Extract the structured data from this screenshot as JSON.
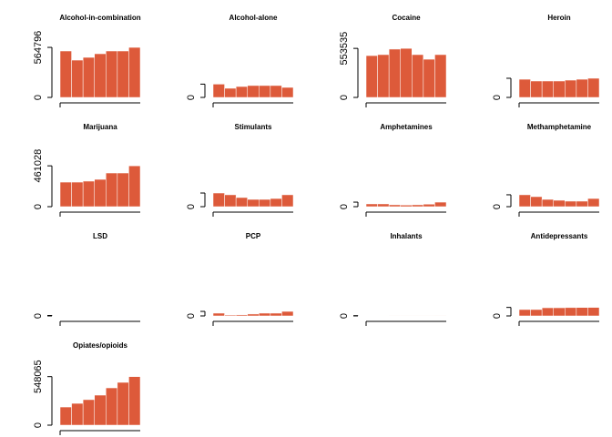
{
  "chart_data": [
    {
      "type": "bar",
      "title": "Alcohol-in-combination",
      "values": [
        524000,
        421000,
        452000,
        493000,
        524000,
        524000,
        564796
      ],
      "color": "#dd5a3a",
      "ylim": [
        0,
        740000
      ],
      "yticks": [
        0,
        564796
      ]
    },
    {
      "type": "bar",
      "title": "Alcohol-alone",
      "values": [
        150000,
        103000,
        123000,
        134000,
        134000,
        134000,
        113000
      ],
      "color": "#dd5a3a",
      "ylim": [
        0,
        740000
      ],
      "yticks": [
        0,
        {
          "value": 150000,
          "label": null
        }
      ]
    },
    {
      "type": "bar",
      "title": "Cocaine",
      "values": [
        472000,
        483000,
        545000,
        553535,
        483000,
        431000,
        483000
      ],
      "color": "#dd5a3a",
      "ylim": [
        0,
        740000
      ],
      "yticks": [
        0,
        553535
      ]
    },
    {
      "type": "bar",
      "title": "Heroin",
      "values": [
        205000,
        185000,
        185000,
        185000,
        195000,
        205000,
        216000
      ],
      "color": "#dd5a3a",
      "ylim": [
        0,
        740000
      ],
      "yticks": [
        0,
        {
          "value": 216000,
          "label": null
        }
      ]
    },
    {
      "type": "bar",
      "title": "Marijuana",
      "values": [
        277000,
        277000,
        288000,
        308000,
        380000,
        380000,
        461028
      ],
      "color": "#dd5a3a",
      "ylim": [
        0,
        740000
      ],
      "yticks": [
        0,
        461028
      ]
    },
    {
      "type": "bar",
      "title": "Stimulants",
      "values": [
        154000,
        134000,
        103000,
        82000,
        82000,
        92000,
        134000
      ],
      "color": "#dd5a3a",
      "ylim": [
        0,
        740000
      ],
      "yticks": [
        0,
        {
          "value": 154000,
          "label": null
        }
      ]
    },
    {
      "type": "bar",
      "title": "Amphetamines",
      "values": [
        31000,
        31000,
        21000,
        18000,
        21000,
        28000,
        51000
      ],
      "color": "#dd5a3a",
      "ylim": [
        0,
        740000
      ],
      "yticks": [
        0,
        {
          "value": 51000,
          "label": null
        }
      ]
    },
    {
      "type": "bar",
      "title": "Methamphetamine",
      "values": [
        134000,
        113000,
        82000,
        72000,
        62000,
        62000,
        92000
      ],
      "color": "#dd5a3a",
      "ylim": [
        0,
        740000
      ],
      "yticks": [
        0,
        {
          "value": 134000,
          "label": null
        }
      ]
    },
    {
      "type": "bar",
      "title": "LSD",
      "values": [
        5000,
        5000,
        4000,
        4000,
        4000,
        4000,
        4000
      ],
      "color": "#dd5a3a",
      "ylim": [
        0,
        740000
      ],
      "yticks": [
        0,
        {
          "value": 5000,
          "label": null
        }
      ]
    },
    {
      "type": "bar",
      "title": "PCP",
      "values": [
        31000,
        10000,
        12000,
        21000,
        31000,
        31000,
        51000
      ],
      "color": "#dd5a3a",
      "ylim": [
        0,
        740000
      ],
      "yticks": [
        0,
        {
          "value": 51000,
          "label": null
        }
      ]
    },
    {
      "type": "bar",
      "title": "Inhalants",
      "values": [
        3000,
        2500,
        2000,
        2000,
        2000,
        2000,
        1800
      ],
      "color": "#dd5a3a",
      "ylim": [
        0,
        740000
      ],
      "yticks": [
        0,
        {
          "value": 3000,
          "label": null
        }
      ]
    },
    {
      "type": "bar",
      "title": "Antidepressants",
      "values": [
        72000,
        72000,
        92000,
        92000,
        94000,
        95000,
        96000
      ],
      "color": "#dd5a3a",
      "ylim": [
        0,
        740000
      ],
      "yticks": [
        0,
        {
          "value": 96000,
          "label": null
        }
      ]
    },
    {
      "type": "bar",
      "title": "Opiates/opioids",
      "values": [
        205000,
        246000,
        288000,
        339000,
        421000,
        483000,
        548065
      ],
      "color": "#dd5a3a",
      "ylim": [
        0,
        740000
      ],
      "yticks": [
        0,
        548065
      ]
    }
  ]
}
